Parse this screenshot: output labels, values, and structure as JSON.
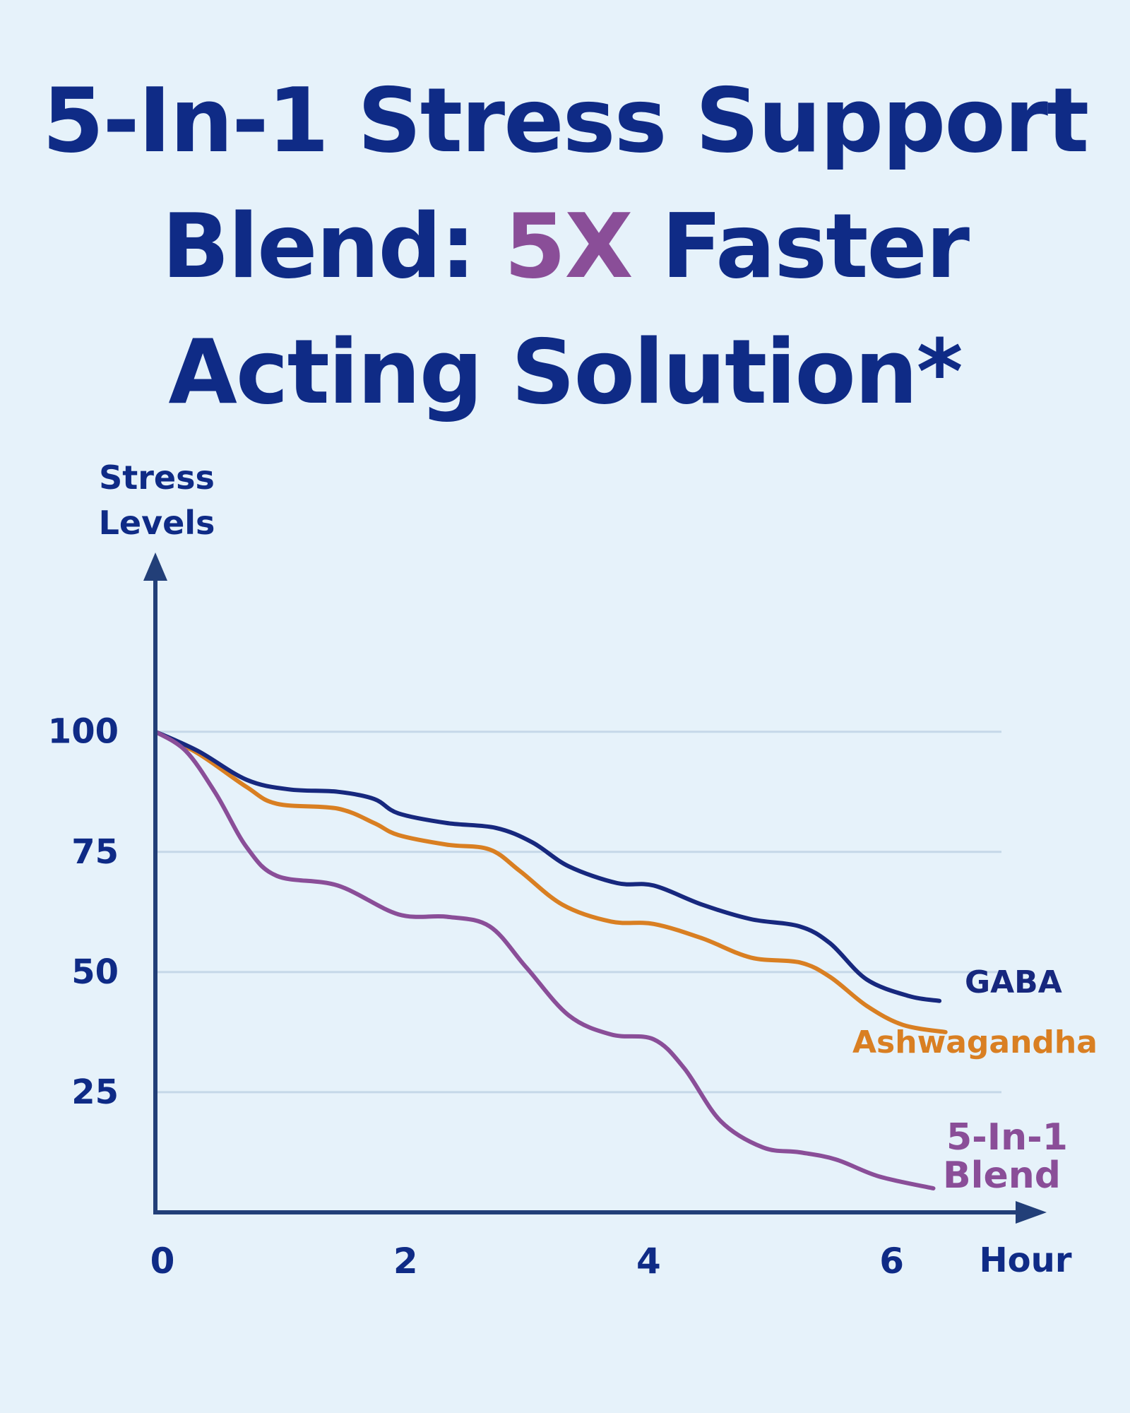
{
  "title": {
    "line1": "5-In-1 Stress Support",
    "line2_before": "Blend: ",
    "line2_accent": "5X",
    "line2_after": " Faster",
    "line3": "Acting Solution*"
  },
  "colors": {
    "background": "#e6f2fa",
    "title": "#0f2b86",
    "accent": "#8a4e98",
    "axis": "#223f78",
    "grid": "#c5d8e8"
  },
  "chart_data": {
    "type": "line",
    "title": "",
    "xlabel": "Hour",
    "ylabel_lines": [
      "Stress",
      "Levels"
    ],
    "xlim": [
      0,
      7.35
    ],
    "ylim": [
      0,
      132
    ],
    "x_ticks": [
      0,
      2,
      4,
      6
    ],
    "y_ticks": [
      25,
      50,
      75,
      100
    ],
    "grid": true,
    "legend": "inline-end-labels",
    "series": [
      {
        "name": "GABA",
        "color": "#17287e",
        "label_lines": [
          "GABA"
        ],
        "points": [
          [
            0,
            100
          ],
          [
            0.35,
            96
          ],
          [
            0.75,
            90
          ],
          [
            1.1,
            88
          ],
          [
            1.5,
            87.5
          ],
          [
            1.8,
            86
          ],
          [
            2.0,
            83
          ],
          [
            2.4,
            81
          ],
          [
            2.8,
            80
          ],
          [
            3.1,
            77
          ],
          [
            3.4,
            72
          ],
          [
            3.8,
            68.5
          ],
          [
            4.1,
            68
          ],
          [
            4.5,
            64
          ],
          [
            4.9,
            61
          ],
          [
            5.3,
            59.5
          ],
          [
            5.55,
            56
          ],
          [
            5.85,
            48.5
          ],
          [
            6.2,
            45
          ],
          [
            6.45,
            44
          ]
        ]
      },
      {
        "name": "Ashwagandha",
        "color": "#d97f22",
        "label_lines": [
          "Ashwagandha"
        ],
        "points": [
          [
            0,
            100
          ],
          [
            0.35,
            95.5
          ],
          [
            0.75,
            88.5
          ],
          [
            1.0,
            85
          ],
          [
            1.5,
            84
          ],
          [
            1.8,
            81
          ],
          [
            2.0,
            78.5
          ],
          [
            2.4,
            76.5
          ],
          [
            2.75,
            75.5
          ],
          [
            3.0,
            71
          ],
          [
            3.35,
            64
          ],
          [
            3.75,
            60.5
          ],
          [
            4.1,
            60
          ],
          [
            4.5,
            57
          ],
          [
            4.9,
            53
          ],
          [
            5.3,
            52
          ],
          [
            5.55,
            49
          ],
          [
            5.85,
            43
          ],
          [
            6.15,
            39
          ],
          [
            6.5,
            37.5
          ]
        ]
      },
      {
        "name": "5-In-1 Blend",
        "color": "#8a4e98",
        "label_lines": [
          "5-In-1",
          "Blend"
        ],
        "points": [
          [
            0,
            100
          ],
          [
            0.25,
            96
          ],
          [
            0.5,
            87
          ],
          [
            0.75,
            76
          ],
          [
            1.0,
            70
          ],
          [
            1.5,
            68
          ],
          [
            2.0,
            62
          ],
          [
            2.4,
            61.5
          ],
          [
            2.75,
            59.5
          ],
          [
            3.05,
            51
          ],
          [
            3.4,
            41
          ],
          [
            3.75,
            37
          ],
          [
            4.1,
            36
          ],
          [
            4.35,
            30
          ],
          [
            4.65,
            19
          ],
          [
            5.0,
            13.5
          ],
          [
            5.3,
            12.5
          ],
          [
            5.6,
            11
          ],
          [
            5.95,
            7.5
          ],
          [
            6.4,
            5
          ]
        ]
      }
    ]
  }
}
